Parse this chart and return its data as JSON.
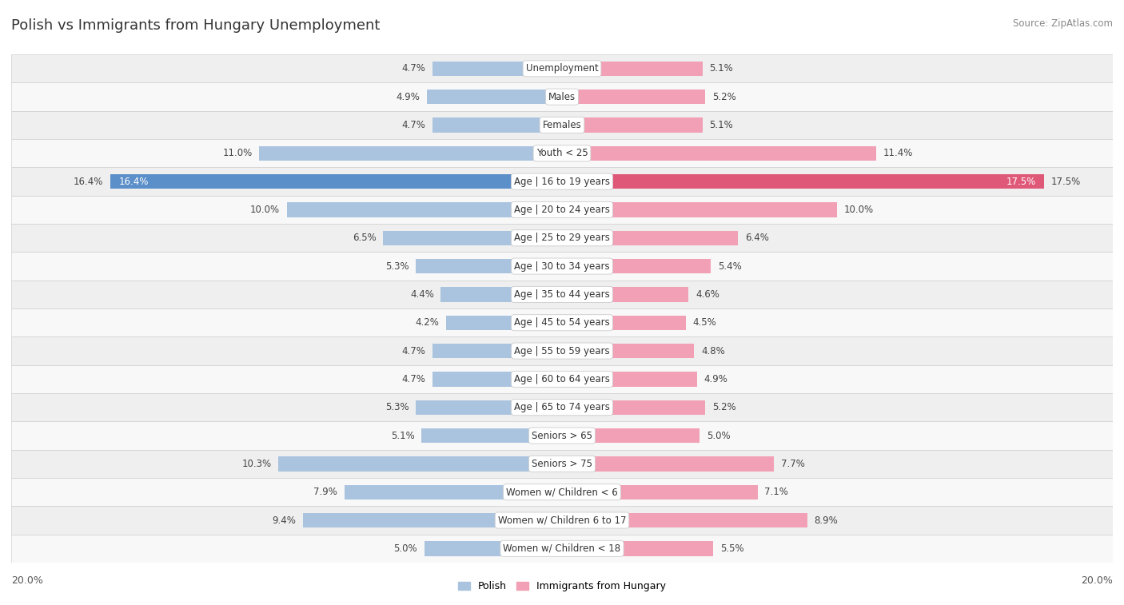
{
  "title": "Polish vs Immigrants from Hungary Unemployment",
  "source": "Source: ZipAtlas.com",
  "categories": [
    "Unemployment",
    "Males",
    "Females",
    "Youth < 25",
    "Age | 16 to 19 years",
    "Age | 20 to 24 years",
    "Age | 25 to 29 years",
    "Age | 30 to 34 years",
    "Age | 35 to 44 years",
    "Age | 45 to 54 years",
    "Age | 55 to 59 years",
    "Age | 60 to 64 years",
    "Age | 65 to 74 years",
    "Seniors > 65",
    "Seniors > 75",
    "Women w/ Children < 6",
    "Women w/ Children 6 to 17",
    "Women w/ Children < 18"
  ],
  "polish": [
    4.7,
    4.9,
    4.7,
    11.0,
    16.4,
    10.0,
    6.5,
    5.3,
    4.4,
    4.2,
    4.7,
    4.7,
    5.3,
    5.1,
    10.3,
    7.9,
    9.4,
    5.0
  ],
  "hungary": [
    5.1,
    5.2,
    5.1,
    11.4,
    17.5,
    10.0,
    6.4,
    5.4,
    4.6,
    4.5,
    4.8,
    4.9,
    5.2,
    5.0,
    7.7,
    7.1,
    8.9,
    5.5
  ],
  "max_val": 20.0,
  "bar_height": 0.52,
  "polish_color": "#aac4df",
  "hungary_color": "#f2a0b5",
  "highlight_polish_color": "#5b8fc9",
  "highlight_hungary_color": "#e05878",
  "row_bg_even": "#efefef",
  "row_bg_odd": "#f8f8f8",
  "label_color": "#444444",
  "highlight_rows": [
    4
  ],
  "axis_label_left": "20.0%",
  "axis_label_right": "20.0%",
  "legend_polish": "Polish",
  "legend_hungary": "Immigrants from Hungary",
  "title_fontsize": 13,
  "source_fontsize": 8.5,
  "label_fontsize": 8.5,
  "cat_fontsize": 8.5
}
